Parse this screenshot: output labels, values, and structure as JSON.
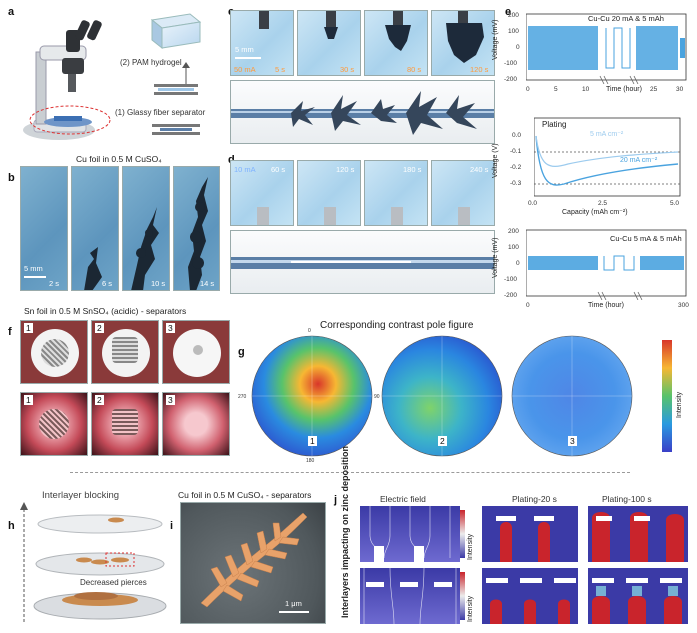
{
  "panel_letters": [
    "a",
    "b",
    "c",
    "d",
    "e",
    "f",
    "g",
    "h",
    "i",
    "j"
  ],
  "a": {
    "hydrogel_label": "(2) PAM hydrogel",
    "separator_label": "(1) Glassy fiber separator"
  },
  "b": {
    "title": "Cu foil in 0.5 M CuSO₄",
    "scale": "5 mm",
    "times": [
      "2 s",
      "6 s",
      "10 s",
      "14 s"
    ]
  },
  "c": {
    "current": "50 mA",
    "scale": "5 mm",
    "times": [
      "5 s",
      "30 s",
      "80 s",
      "120 s"
    ]
  },
  "d": {
    "current": "10 mA",
    "times": [
      "60 s",
      "120 s",
      "180 s",
      "240 s"
    ]
  },
  "e": {
    "plot1": {
      "label": "Cu-Cu 20 mA & 5 mAh",
      "ylabel": "Voltage (mV)",
      "xlabel": "Time (hour)",
      "yticks": [
        "200",
        "100",
        "0",
        "-100",
        "-200"
      ],
      "xticks": [
        "0",
        "5",
        "10",
        "25",
        "30"
      ]
    },
    "plot2": {
      "title": "Plating",
      "ylabel": "Voltage (V)",
      "xlabel": "Capacity (mAh cm⁻²)",
      "series_a": "5 mA cm⁻²",
      "series_b": "20 mA cm⁻²",
      "yticks": [
        "0.0",
        "-0.1",
        "-0.2",
        "-0.3"
      ],
      "xticks": [
        "0.0",
        "2.5",
        "5.0"
      ]
    },
    "plot3": {
      "label": "Cu-Cu 5 mA & 5 mAh",
      "ylabel": "Voltage (mV)",
      "xlabel": "Time (hour)",
      "yticks": [
        "200",
        "100",
        "0",
        "-100",
        "-200"
      ],
      "xticks": [
        "0",
        "300"
      ]
    }
  },
  "f": {
    "title": "Sn foil in 0.5 M SnSO₄ (acidic) - separators",
    "labels": [
      "1",
      "2",
      "3"
    ]
  },
  "g": {
    "title": "Corresponding contrast pole figure",
    "labels": [
      "1",
      "2",
      "3"
    ],
    "angles": [
      "0",
      "90",
      "180",
      "270"
    ],
    "colorbar_label": "Intensity"
  },
  "h": {
    "title": "Interlayer blocking",
    "note": "Decreased pierces"
  },
  "i": {
    "title": "Cu foil in 0.5 M CuSO₄ - separators",
    "scale": "1 μm"
  },
  "j": {
    "side_label": "Interlayers impacting on zinc deposition",
    "col_titles": [
      "Electric field",
      "Plating-20 s",
      "Plating-100 s"
    ],
    "colorbar_label": "Intensity"
  },
  "colors": {
    "plot_blue": "#4aa3df",
    "frame_gray": "#999999",
    "dendrite": "#1d2a3a",
    "cu_orange": "#e8a26a"
  }
}
